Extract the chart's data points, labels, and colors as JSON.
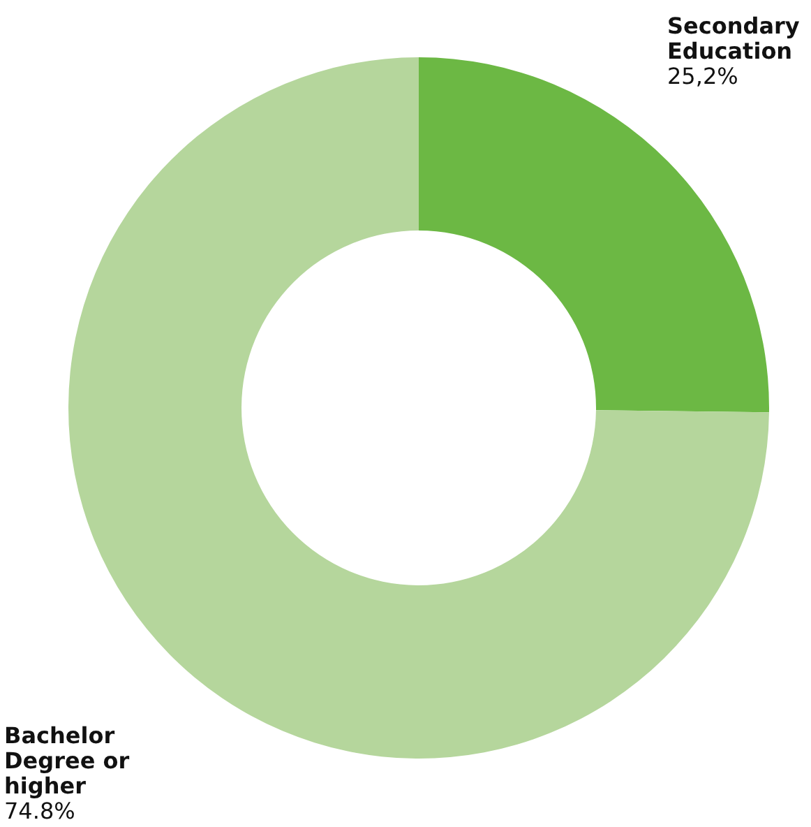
{
  "chart_data": {
    "type": "donut",
    "categories": [
      "Secondary Education",
      "Bachelor Degree or higher"
    ],
    "values": [
      25.2,
      74.8
    ],
    "value_labels": [
      "25,2%",
      "74.8%"
    ],
    "colors": [
      "#6cb844",
      "#b5d69c"
    ]
  }
}
